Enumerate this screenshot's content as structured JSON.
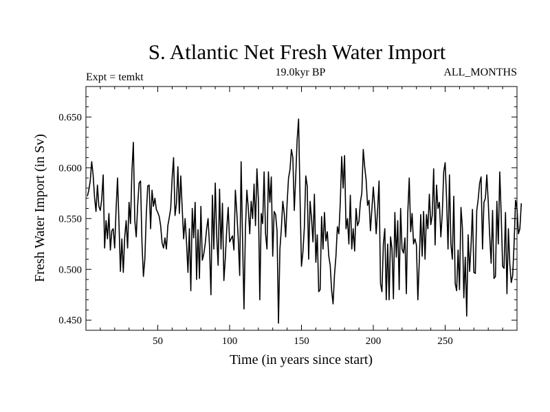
{
  "chart_data": {
    "type": "line",
    "title": "S. Atlantic Net Fresh Water Import",
    "subtitle": "19.0kyr BP",
    "left_label": "Expt = temkt",
    "right_label": "ALL_MONTHS",
    "xlabel": "Time (in years since start)",
    "ylabel": "Fresh Water Import (in Sv)",
    "xlim": [
      0,
      300
    ],
    "ylim": [
      0.44,
      0.68
    ],
    "xticks": [
      50,
      100,
      150,
      200,
      250
    ],
    "xtick_labels": [
      "50",
      "100",
      "150",
      "200",
      "250"
    ],
    "yticks": [
      0.45,
      0.5,
      0.55,
      0.6,
      0.65
    ],
    "ytick_labels": [
      "0.450",
      "0.500",
      "0.550",
      "0.600",
      "0.650"
    ],
    "series": [
      {
        "name": "Fresh Water Import",
        "color": "#000000",
        "x_start": 1,
        "x_step": 1,
        "values": [
          0.572,
          0.578,
          0.587,
          0.606,
          0.593,
          0.571,
          0.557,
          0.583,
          0.562,
          0.558,
          0.569,
          0.593,
          0.521,
          0.548,
          0.53,
          0.555,
          0.519,
          0.538,
          0.54,
          0.521,
          0.56,
          0.59,
          0.545,
          0.498,
          0.53,
          0.497,
          0.532,
          0.548,
          0.521,
          0.566,
          0.545,
          0.596,
          0.625,
          0.548,
          0.532,
          0.563,
          0.585,
          0.587,
          0.526,
          0.493,
          0.51,
          0.554,
          0.582,
          0.583,
          0.54,
          0.578,
          0.562,
          0.57,
          0.559,
          0.556,
          0.552,
          0.543,
          0.526,
          0.521,
          0.531,
          0.52,
          0.543,
          0.551,
          0.56,
          0.59,
          0.61,
          0.553,
          0.565,
          0.601,
          0.555,
          0.592,
          0.56,
          0.53,
          0.55,
          0.527,
          0.497,
          0.54,
          0.479,
          0.56,
          0.531,
          0.566,
          0.49,
          0.539,
          0.491,
          0.562,
          0.509,
          0.515,
          0.525,
          0.54,
          0.55,
          0.523,
          0.475,
          0.573,
          0.52,
          0.585,
          0.533,
          0.504,
          0.579,
          0.52,
          0.565,
          0.489,
          0.511,
          0.54,
          0.561,
          0.527,
          0.53,
          0.533,
          0.519,
          0.578,
          0.556,
          0.53,
          0.494,
          0.606,
          0.53,
          0.461,
          0.54,
          0.578,
          0.56,
          0.535,
          0.567,
          0.55,
          0.584,
          0.543,
          0.599,
          0.569,
          0.47,
          0.555,
          0.545,
          0.596,
          0.535,
          0.52,
          0.596,
          0.566,
          0.591,
          0.513,
          0.557,
          0.554,
          0.538,
          0.447,
          0.52,
          0.54,
          0.567,
          0.555,
          0.532,
          0.565,
          0.59,
          0.598,
          0.618,
          0.61,
          0.558,
          0.591,
          0.628,
          0.648,
          0.571,
          0.503,
          0.517,
          0.541,
          0.592,
          0.582,
          0.51,
          0.567,
          0.55,
          0.527,
          0.574,
          0.507,
          0.534,
          0.478,
          0.48,
          0.552,
          0.52,
          0.556,
          0.528,
          0.537,
          0.513,
          0.504,
          0.479,
          0.466,
          0.495,
          0.513,
          0.542,
          0.535,
          0.565,
          0.611,
          0.58,
          0.612,
          0.54,
          0.55,
          0.525,
          0.573,
          0.52,
          0.54,
          0.518,
          0.56,
          0.543,
          0.547,
          0.566,
          0.575,
          0.618,
          0.601,
          0.588,
          0.563,
          0.568,
          0.538,
          0.559,
          0.581,
          0.562,
          0.535,
          0.559,
          0.587,
          0.486,
          0.478,
          0.525,
          0.54,
          0.47,
          0.525,
          0.47,
          0.532,
          0.52,
          0.471,
          0.556,
          0.512,
          0.548,
          0.48,
          0.56,
          0.52,
          0.516,
          0.531,
          0.476,
          0.556,
          0.59,
          0.537,
          0.555,
          0.525,
          0.53,
          0.524,
          0.47,
          0.508,
          0.554,
          0.513,
          0.557,
          0.51,
          0.554,
          0.54,
          0.574,
          0.544,
          0.553,
          0.599,
          0.524,
          0.583,
          0.56,
          0.566,
          0.532,
          0.555,
          0.596,
          0.605,
          0.569,
          0.52,
          0.593,
          0.525,
          0.51,
          0.572,
          0.486,
          0.479,
          0.519,
          0.48,
          0.561,
          0.541,
          0.472,
          0.512,
          0.454,
          0.534,
          0.498,
          0.523,
          0.559,
          0.497,
          0.496,
          0.558,
          0.569,
          0.585,
          0.591,
          0.52,
          0.566,
          0.57,
          0.593,
          0.566,
          0.533,
          0.506,
          0.558,
          0.491,
          0.493,
          0.567,
          0.525,
          0.596,
          0.554,
          0.503,
          0.501,
          0.556,
          0.476,
          0.54,
          0.505,
          0.487,
          0.494,
          0.526,
          0.568,
          0.56,
          0.535,
          0.54,
          0.565
        ]
      }
    ]
  }
}
